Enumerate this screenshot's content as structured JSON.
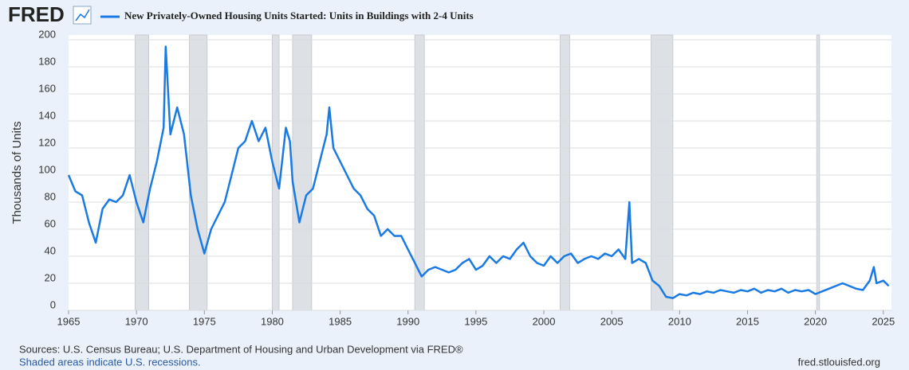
{
  "chart_data": {
    "type": "line",
    "logo": "FRED",
    "ylabel": "Thousands of Units",
    "source": "Sources: U.S. Census Bureau; U.S. Department of Housing and Urban Development via FRED®",
    "note": "Shaded areas indicate U.S. recessions.",
    "site": "fred.stlouisfed.org",
    "xlim": [
      1965,
      2025.6
    ],
    "xticks": [
      1965,
      1970,
      1975,
      1980,
      1985,
      1990,
      1995,
      2000,
      2005,
      2010,
      2015,
      2020,
      2025
    ],
    "ylim": [
      0,
      200
    ],
    "yticks": [
      0,
      20,
      40,
      60,
      80,
      100,
      120,
      140,
      160,
      180,
      200
    ],
    "grid": true,
    "recessions": [
      [
        1969.9,
        1970.9
      ],
      [
        1973.9,
        1975.2
      ],
      [
        1980.0,
        1980.5
      ],
      [
        1981.5,
        1982.9
      ],
      [
        1990.5,
        1991.2
      ],
      [
        2001.2,
        2001.9
      ],
      [
        2007.9,
        2009.5
      ],
      [
        2020.1,
        2020.3
      ]
    ],
    "x": [
      1965.0,
      1965.5,
      1966.0,
      1966.5,
      1967.0,
      1967.5,
      1968.0,
      1968.5,
      1969.0,
      1969.5,
      1970.0,
      1970.5,
      1971.0,
      1971.5,
      1972.0,
      1972.15,
      1972.5,
      1973.0,
      1973.5,
      1974.0,
      1974.5,
      1975.0,
      1975.5,
      1976.0,
      1976.5,
      1977.0,
      1977.5,
      1978.0,
      1978.5,
      1979.0,
      1979.5,
      1980.0,
      1980.5,
      1981.0,
      1981.3,
      1981.5,
      1982.0,
      1982.5,
      1983.0,
      1983.5,
      1984.0,
      1984.2,
      1984.5,
      1985.0,
      1985.5,
      1986.0,
      1986.5,
      1987.0,
      1987.5,
      1988.0,
      1988.5,
      1989.0,
      1989.5,
      1990.0,
      1990.5,
      1991.0,
      1991.5,
      1992.0,
      1992.5,
      1993.0,
      1993.5,
      1994.0,
      1994.5,
      1995.0,
      1995.5,
      1996.0,
      1996.5,
      1997.0,
      1997.5,
      1998.0,
      1998.5,
      1999.0,
      1999.5,
      2000.0,
      2000.5,
      2001.0,
      2001.5,
      2002.0,
      2002.5,
      2003.0,
      2003.5,
      2004.0,
      2004.5,
      2005.0,
      2005.5,
      2006.0,
      2006.3,
      2006.5,
      2007.0,
      2007.5,
      2008.0,
      2008.5,
      2009.0,
      2009.5,
      2010.0,
      2010.5,
      2011.0,
      2011.5,
      2012.0,
      2012.5,
      2013.0,
      2013.5,
      2014.0,
      2014.5,
      2015.0,
      2015.5,
      2016.0,
      2016.5,
      2017.0,
      2017.5,
      2018.0,
      2018.5,
      2019.0,
      2019.5,
      2020.0,
      2020.5,
      2021.0,
      2021.5,
      2022.0,
      2022.5,
      2023.0,
      2023.5,
      2024.0,
      2024.3,
      2024.5,
      2025.0,
      2025.4
    ],
    "series": [
      {
        "name": "New Privately-Owned Housing Units Started: Units in Buildings with 2-4 Units",
        "color": "#1a7ae3",
        "values": [
          100,
          88,
          85,
          65,
          50,
          75,
          82,
          80,
          85,
          100,
          80,
          65,
          90,
          110,
          135,
          195,
          130,
          150,
          130,
          85,
          60,
          42,
          60,
          70,
          80,
          100,
          120,
          125,
          140,
          125,
          135,
          110,
          90,
          135,
          125,
          95,
          65,
          85,
          90,
          110,
          130,
          150,
          120,
          110,
          100,
          90,
          85,
          75,
          70,
          55,
          60,
          55,
          55,
          45,
          35,
          25,
          30,
          32,
          30,
          28,
          30,
          35,
          38,
          30,
          33,
          40,
          35,
          40,
          38,
          45,
          50,
          40,
          35,
          33,
          40,
          35,
          40,
          42,
          35,
          38,
          40,
          38,
          42,
          40,
          45,
          38,
          80,
          35,
          38,
          35,
          22,
          18,
          10,
          9,
          12,
          11,
          13,
          12,
          14,
          13,
          15,
          14,
          13,
          15,
          14,
          16,
          13,
          15,
          14,
          16,
          13,
          15,
          14,
          15,
          12,
          14,
          16,
          18,
          20,
          18,
          16,
          15,
          22,
          32,
          20,
          22,
          18
        ]
      }
    ]
  }
}
